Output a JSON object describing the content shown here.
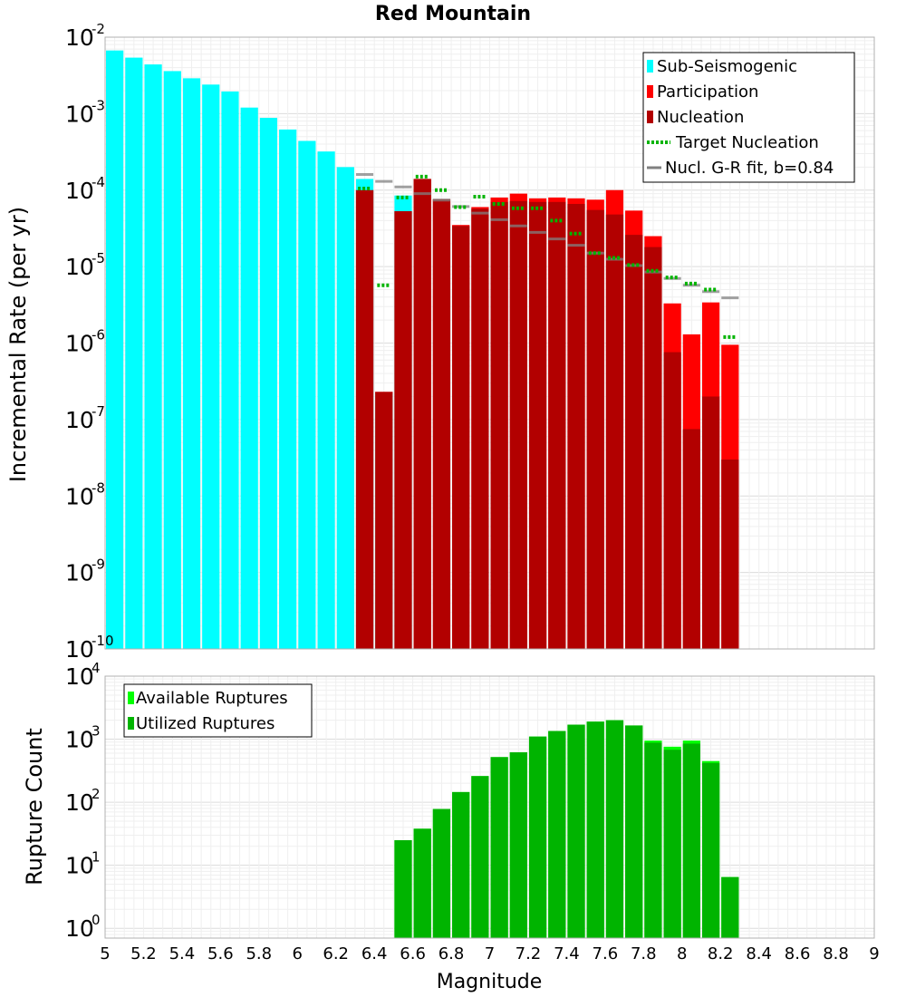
{
  "chart_data": {
    "title": "Red Mountain",
    "xlabel": "Magnitude",
    "xlim": [
      5,
      9
    ],
    "xticks": [
      "5",
      "5.2",
      "5.4",
      "5.6",
      "5.8",
      "6",
      "6.2",
      "6.4",
      "6.6",
      "6.8",
      "7",
      "7.2",
      "7.4",
      "7.6",
      "7.8",
      "8",
      "8.2",
      "8.4",
      "8.6",
      "8.8",
      "9"
    ],
    "bin_width": 0.1,
    "top_panel": {
      "type": "bar",
      "yscale": "log",
      "ylabel": "Incremental Rate (per yr)",
      "ylim": [
        1e-10,
        0.01
      ],
      "ytick_base": "10",
      "ytick_exponents": [
        "-10",
        "-9",
        "-8",
        "-7",
        "-6",
        "-5",
        "-4",
        "-3",
        "-2"
      ],
      "legend": {
        "sub": "Sub-Seismogenic",
        "part": "Participation",
        "nucl": "Nucleation",
        "target": "Target Nucleation",
        "gr": "Nucl. G-R fit, b=0.84"
      },
      "colors": {
        "sub": "#00ffff",
        "part": "#ff0000",
        "nucl": "#b20000",
        "target": "#00b400",
        "gr": "#808080"
      },
      "series": {
        "sub_seismogenic": {
          "x": [
            5.05,
            5.15,
            5.25,
            5.35,
            5.45,
            5.55,
            5.65,
            5.75,
            5.85,
            5.95,
            6.05,
            6.15,
            6.25,
            6.35,
            6.45,
            6.55
          ],
          "values": [
            0.0067,
            0.0054,
            0.0044,
            0.0036,
            0.0029,
            0.0024,
            0.00195,
            0.0012,
            0.00088,
            0.00062,
            0.00044,
            0.00032,
            0.0002,
            0.00014,
            2.2e-07,
            8.5e-05
          ]
        },
        "participation": {
          "x": [
            6.35,
            6.45,
            6.55,
            6.65,
            6.75,
            6.85,
            6.95,
            7.05,
            7.15,
            7.25,
            7.35,
            7.45,
            7.55,
            7.65,
            7.75,
            7.85,
            7.95,
            8.05,
            8.15,
            8.25
          ],
          "values": [
            0.0001,
            2.3e-07,
            5.3e-05,
            0.00014,
            7.6e-05,
            3.5e-05,
            6e-05,
            8e-05,
            9e-05,
            7.8e-05,
            8e-05,
            7.8e-05,
            7.5e-05,
            0.0001,
            5.4e-05,
            2.5e-05,
            3.3e-06,
            1.3e-06,
            3.4e-06,
            9.5e-07
          ]
        },
        "nucleation": {
          "x": [
            6.35,
            6.45,
            6.55,
            6.65,
            6.75,
            6.85,
            6.95,
            7.05,
            7.15,
            7.25,
            7.35,
            7.45,
            7.55,
            7.65,
            7.75,
            7.85,
            7.95,
            8.05,
            8.15,
            8.25
          ],
          "values": [
            0.0001,
            2.3e-07,
            5.3e-05,
            0.00014,
            7.6e-05,
            3.4e-05,
            5.7e-05,
            7e-05,
            7.2e-05,
            7e-05,
            7e-05,
            6.6e-05,
            5.5e-05,
            4.8e-05,
            2.6e-05,
            1.8e-05,
            7.6e-07,
            7.5e-08,
            2e-07,
            3e-08
          ]
        },
        "target_nucleation": {
          "x": [
            6.35,
            6.45,
            6.55,
            6.65,
            6.75,
            6.85,
            6.95,
            7.05,
            7.15,
            7.25,
            7.35,
            7.45,
            7.55,
            7.65,
            7.75,
            7.85,
            7.95,
            8.05,
            8.15,
            8.25
          ],
          "values": [
            0.000105,
            5.7e-06,
            8e-05,
            0.00015,
            0.0001,
            6e-05,
            8.2e-05,
            6.6e-05,
            5.8e-05,
            5.8e-05,
            4e-05,
            2.7e-05,
            1.5e-05,
            1.3e-05,
            1.05e-05,
            8.8e-06,
            7.2e-06,
            6e-06,
            5e-06,
            1.2e-06
          ]
        },
        "gr_fit": {
          "x": [
            6.35,
            6.45,
            6.55,
            6.65,
            6.75,
            6.85,
            6.95,
            7.05,
            7.15,
            7.25,
            7.35,
            7.45,
            7.55,
            7.65,
            7.75,
            7.85,
            7.95,
            8.05,
            8.15,
            8.25
          ],
          "values": [
            0.00016,
            0.00013,
            0.00011,
            9e-05,
            7.4e-05,
            6.1e-05,
            5e-05,
            4.1e-05,
            3.4e-05,
            2.8e-05,
            2.3e-05,
            1.9e-05,
            1.5e-05,
            1.25e-05,
            1.03e-05,
            8.5e-06,
            7e-06,
            5.7e-06,
            4.7e-06,
            3.9e-06
          ]
        }
      }
    },
    "bottom_panel": {
      "type": "bar",
      "yscale": "log",
      "ylabel": "Rupture Count",
      "ylim": [
        0.7,
        10000
      ],
      "ytick_base": "10",
      "ytick_exponents": [
        "0",
        "1",
        "2",
        "3",
        "4"
      ],
      "legend": {
        "avail": "Available Ruptures",
        "used": "Utilized Ruptures"
      },
      "colors": {
        "avail": "#00ff00",
        "used": "#00b400"
      },
      "series": {
        "available": {
          "x": [
            6.55,
            6.65,
            6.75,
            6.85,
            6.95,
            7.05,
            7.15,
            7.25,
            7.35,
            7.45,
            7.55,
            7.65,
            7.75,
            7.85,
            7.95,
            8.05,
            8.15,
            8.25
          ],
          "values": [
            25,
            38,
            78,
            145,
            260,
            520,
            620,
            1100,
            1350,
            1700,
            1900,
            2000,
            1650,
            950,
            760,
            950,
            450,
            6.5
          ]
        },
        "utilized": {
          "x": [
            6.55,
            6.65,
            6.75,
            6.85,
            6.95,
            7.05,
            7.15,
            7.25,
            7.35,
            7.45,
            7.55,
            7.65,
            7.75,
            7.85,
            7.95,
            8.05,
            8.15,
            8.25
          ],
          "values": [
            25,
            38,
            78,
            145,
            260,
            520,
            620,
            1100,
            1350,
            1700,
            1900,
            2000,
            1650,
            880,
            680,
            850,
            420,
            6.5
          ]
        }
      }
    }
  }
}
